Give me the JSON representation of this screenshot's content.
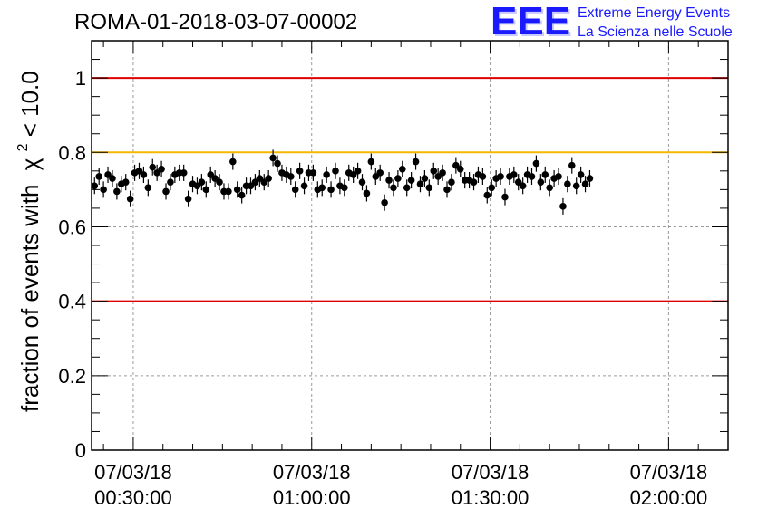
{
  "brand": {
    "logo": "EEE",
    "line1": "Extreme Energy Events",
    "line2": "La Scienza nelle Scuole",
    "color": "#1a1aff"
  },
  "chart_data": {
    "type": "scatter",
    "title": "ROMA-01-2018-03-07-00002",
    "ylabel": "fraction of events with",
    "ylabel_chi": "χ",
    "ylabel_exp": "2",
    "ylabel_tail": " < 10.0",
    "xlabel": "",
    "ylim": [
      0,
      1.1
    ],
    "xlim_minutes": [
      23,
      130
    ],
    "grid": true,
    "x_ticks": [
      {
        "minutes": 30,
        "date": "07/03/18",
        "time": "00:30:00"
      },
      {
        "minutes": 60,
        "date": "07/03/18",
        "time": "01:00:00"
      },
      {
        "minutes": 90,
        "date": "07/03/18",
        "time": "01:30:00"
      },
      {
        "minutes": 120,
        "date": "07/03/18",
        "time": "02:00:00"
      }
    ],
    "y_ticks": [
      0,
      0.2,
      0.4,
      0.6,
      0.8,
      1
    ],
    "y_tick_labels": [
      "0",
      "0.2",
      "0.4",
      "0.6",
      "0.8",
      "1"
    ],
    "reference_lines": [
      {
        "y": 1.0,
        "color": "#e00000"
      },
      {
        "y": 0.8,
        "color": "#f5b800"
      },
      {
        "y": 0.4,
        "color": "#e00000"
      }
    ],
    "marker_color": "#000000",
    "error": 0.022,
    "x_step_minutes": 0.75,
    "x_start_minutes": 23.5,
    "values": [
      0.71,
      0.735,
      0.7,
      0.74,
      0.73,
      0.695,
      0.715,
      0.72,
      0.675,
      0.745,
      0.75,
      0.74,
      0.705,
      0.76,
      0.745,
      0.755,
      0.695,
      0.72,
      0.74,
      0.745,
      0.745,
      0.675,
      0.715,
      0.71,
      0.72,
      0.7,
      0.74,
      0.73,
      0.72,
      0.695,
      0.695,
      0.775,
      0.7,
      0.685,
      0.71,
      0.71,
      0.72,
      0.73,
      0.72,
      0.73,
      0.785,
      0.77,
      0.745,
      0.74,
      0.735,
      0.7,
      0.75,
      0.71,
      0.745,
      0.745,
      0.7,
      0.705,
      0.74,
      0.7,
      0.75,
      0.71,
      0.705,
      0.745,
      0.74,
      0.75,
      0.72,
      0.69,
      0.775,
      0.735,
      0.745,
      0.665,
      0.725,
      0.705,
      0.73,
      0.755,
      0.705,
      0.725,
      0.775,
      0.715,
      0.73,
      0.705,
      0.75,
      0.735,
      0.745,
      0.7,
      0.72,
      0.765,
      0.755,
      0.725,
      0.725,
      0.72,
      0.74,
      0.735,
      0.685,
      0.705,
      0.73,
      0.735,
      0.68,
      0.735,
      0.74,
      0.72,
      0.71,
      0.74,
      0.735,
      0.77,
      0.72,
      0.74,
      0.705,
      0.73,
      0.735,
      0.655,
      0.715,
      0.765,
      0.71,
      0.74,
      0.715,
      0.73
    ]
  }
}
